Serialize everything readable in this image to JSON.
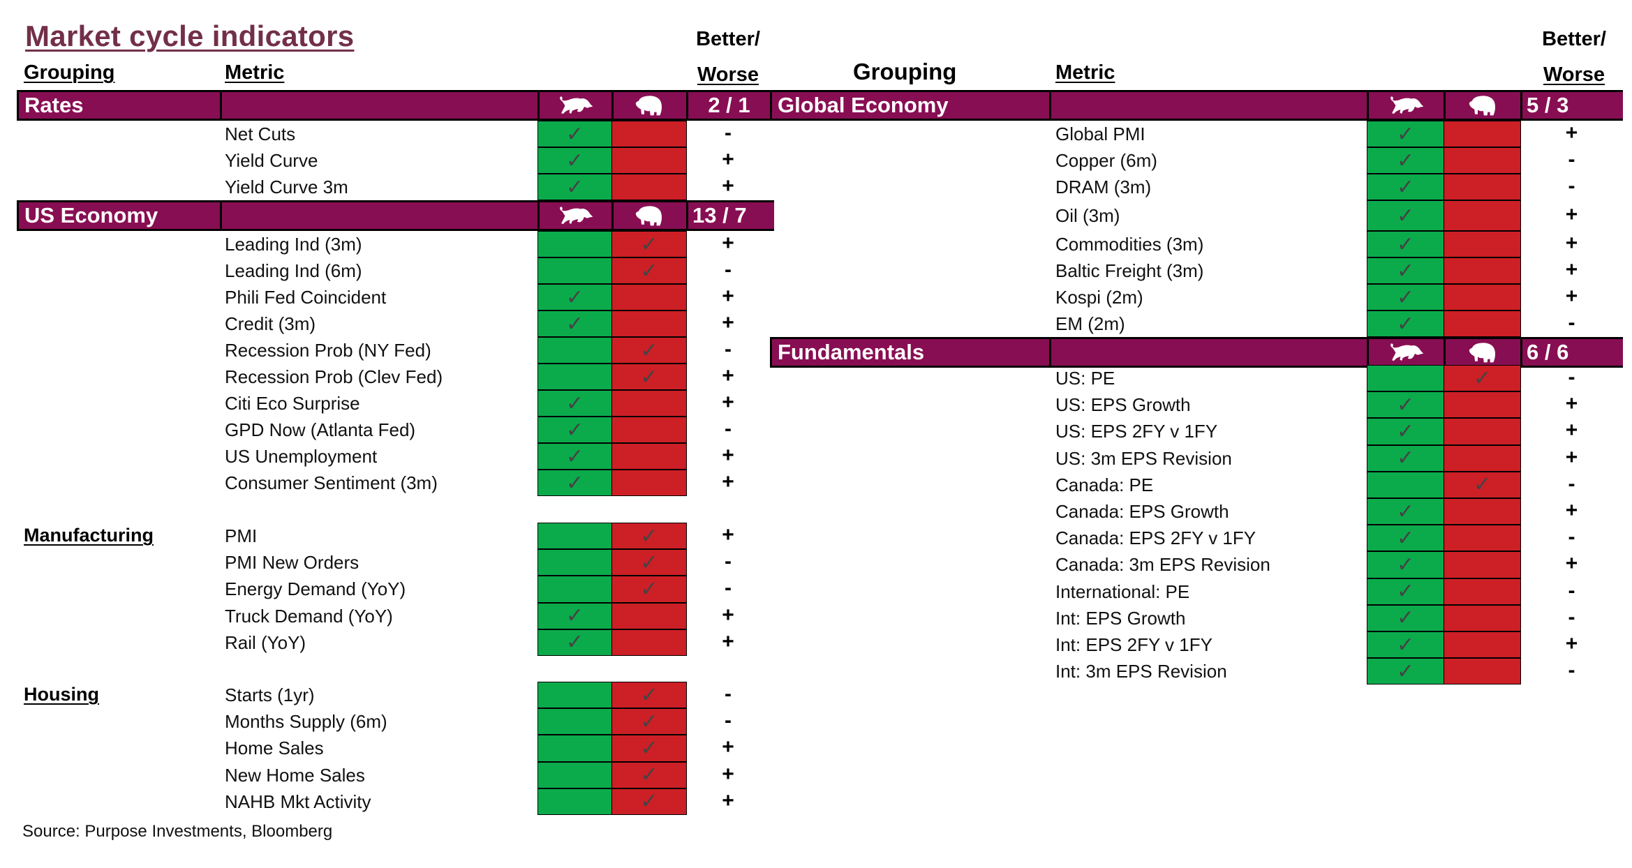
{
  "title": "Market cycle indicators",
  "headers": {
    "grouping": "Grouping",
    "metric": "Metric",
    "better": "Better/",
    "worse": "Worse",
    "bull_icon": "bull-icon",
    "bear_icon": "bear-icon"
  },
  "colors": {
    "band": "#880e53",
    "title": "#722f49",
    "bull": "#0bab4c",
    "bear": "#cd1f26",
    "check": "#444444"
  },
  "check_glyph": "✓",
  "left": {
    "rates": {
      "name": "Rates",
      "score": "2 / 1",
      "rows": [
        {
          "metric": "Net Cuts",
          "signal": "bull",
          "bw": "-"
        },
        {
          "metric": "Yield Curve",
          "signal": "bull",
          "bw": "+"
        },
        {
          "metric": "Yield Curve 3m",
          "signal": "bull",
          "bw": "+"
        }
      ]
    },
    "us_economy": {
      "name": "US Economy",
      "score": "13 / 7",
      "rows": [
        {
          "metric": "Leading Ind (3m)",
          "signal": "bear",
          "bw": "+"
        },
        {
          "metric": "Leading Ind (6m)",
          "signal": "bear",
          "bw": "-"
        },
        {
          "metric": "Phili Fed Coincident",
          "signal": "bull",
          "bw": "+"
        },
        {
          "metric": "Credit (3m)",
          "signal": "bull",
          "bw": "+"
        },
        {
          "metric": "Recession Prob (NY Fed)",
          "signal": "bear",
          "bw": "-"
        },
        {
          "metric": "Recession Prob (Clev Fed)",
          "signal": "bear",
          "bw": "+"
        },
        {
          "metric": "Citi Eco Surprise",
          "signal": "bull",
          "bw": "+"
        },
        {
          "metric": "GPD Now (Atlanta Fed)",
          "signal": "bull",
          "bw": "-"
        },
        {
          "metric": "US Unemployment",
          "signal": "bull",
          "bw": "+"
        },
        {
          "metric": "Consumer Sentiment (3m)",
          "signal": "bull",
          "bw": "+"
        }
      ]
    },
    "manufacturing": {
      "name": "Manufacturing",
      "rows": [
        {
          "metric": "PMI",
          "signal": "bear",
          "bw": "+"
        },
        {
          "metric": "PMI New Orders",
          "signal": "bear",
          "bw": "-"
        },
        {
          "metric": "Energy Demand (YoY)",
          "signal": "bear",
          "bw": "-"
        },
        {
          "metric": "Truck Demand (YoY)",
          "signal": "bull",
          "bw": "+"
        },
        {
          "metric": "Rail (YoY)",
          "signal": "bull",
          "bw": "+"
        }
      ]
    },
    "housing": {
      "name": "Housing",
      "rows": [
        {
          "metric": "Starts (1yr)",
          "signal": "bear",
          "bw": "-"
        },
        {
          "metric": "Months Supply (6m)",
          "signal": "bear",
          "bw": "-"
        },
        {
          "metric": "Home Sales",
          "signal": "bear",
          "bw": "+"
        },
        {
          "metric": "New Home Sales",
          "signal": "bear",
          "bw": "+"
        },
        {
          "metric": "NAHB Mkt Activity",
          "signal": "bear",
          "bw": "+"
        }
      ]
    }
  },
  "right": {
    "global_economy": {
      "name": "Global Economy",
      "score": "5 / 3",
      "rows": [
        {
          "metric": "Global PMI",
          "signal": "bull",
          "bw": "+"
        },
        {
          "metric": "Copper (6m)",
          "signal": "bull",
          "bw": "-"
        },
        {
          "metric": "DRAM (3m)",
          "signal": "bull",
          "bw": "-"
        },
        {
          "metric": "Oil (3m)",
          "signal": "bull",
          "bw": "+"
        },
        {
          "metric": "Commodities (3m)",
          "signal": "bull",
          "bw": "+"
        },
        {
          "metric": "Baltic Freight (3m)",
          "signal": "bull",
          "bw": "+"
        },
        {
          "metric": "Kospi (2m)",
          "signal": "bull",
          "bw": "+"
        },
        {
          "metric": "EM (2m)",
          "signal": "bull",
          "bw": "-"
        }
      ]
    },
    "fundamentals": {
      "name": "Fundamentals",
      "score": "6 / 6",
      "rows": [
        {
          "metric": "US: PE",
          "signal": "bear",
          "bw": "-"
        },
        {
          "metric": "US: EPS Growth",
          "signal": "bull",
          "bw": "+"
        },
        {
          "metric": "US: EPS 2FY v 1FY",
          "signal": "bull",
          "bw": "+"
        },
        {
          "metric": "US: 3m EPS Revision",
          "signal": "bull",
          "bw": "+"
        },
        {
          "metric": "Canada: PE",
          "signal": "bear",
          "bw": "-"
        },
        {
          "metric": "Canada: EPS Growth",
          "signal": "bull",
          "bw": "+"
        },
        {
          "metric": "Canada: EPS 2FY v 1FY",
          "signal": "bull",
          "bw": "-"
        },
        {
          "metric": "Canada: 3m EPS Revision",
          "signal": "bull",
          "bw": "+"
        },
        {
          "metric": "International: PE",
          "signal": "bull",
          "bw": "-"
        },
        {
          "metric": "Int: EPS Growth",
          "signal": "bull",
          "bw": "-"
        },
        {
          "metric": "Int: EPS 2FY v 1FY",
          "signal": "bull",
          "bw": "+"
        },
        {
          "metric": "Int: 3m EPS Revision",
          "signal": "bull",
          "bw": "-"
        }
      ]
    }
  },
  "source": "Source: Purpose Investments, Bloomberg"
}
